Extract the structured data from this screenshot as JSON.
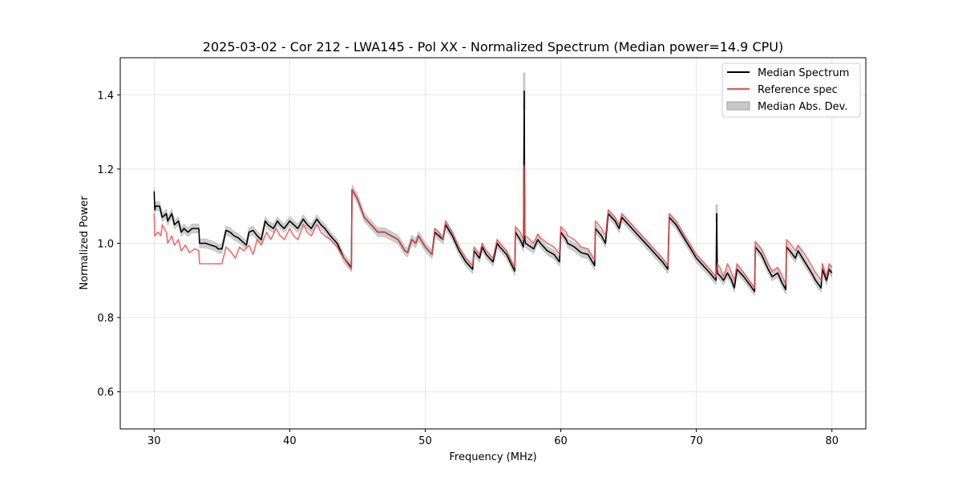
{
  "chart_data": {
    "type": "line",
    "title": "2025-03-02 - Cor 212 - LWA145 - Pol XX - Normalized Spectrum (Median power=14.9 CPU)",
    "xlabel": "Frequency (MHz)",
    "ylabel": "Normalized Power",
    "xlim": [
      27.5,
      82.5
    ],
    "ylim": [
      0.5,
      1.5
    ],
    "xticks": [
      30,
      40,
      50,
      60,
      70,
      80
    ],
    "yticks": [
      0.6,
      0.8,
      1.0,
      1.2,
      1.4
    ],
    "grid": true,
    "legend_position": "upper-right",
    "legend": [
      "Median Spectrum",
      "Reference spec",
      "Median Abs. Dev."
    ],
    "colors": {
      "median": "#000000",
      "reference": "#f05050",
      "overlap": "#8b0000",
      "mad_fill": "#c8c8c8",
      "mad_edge": "#a0a0a0",
      "grid": "#e6e6e6"
    },
    "series": [
      {
        "name": "Median Spectrum",
        "x": [
          30.0,
          30.05,
          30.1,
          30.4,
          30.6,
          30.9,
          31.0,
          31.3,
          31.5,
          31.8,
          32.0,
          32.2,
          32.5,
          32.8,
          33.0,
          33.3,
          33.35,
          33.8,
          34.2,
          34.6,
          34.7,
          35.0,
          35.3,
          35.6,
          35.9,
          36.2,
          36.5,
          36.8,
          37.0,
          37.3,
          37.6,
          37.9,
          38.2,
          38.4,
          38.8,
          39.1,
          39.3,
          39.6,
          40.0,
          40.3,
          40.6,
          41.0,
          41.3,
          41.6,
          42.0,
          42.3,
          42.6,
          43.0,
          43.5,
          44.0,
          44.55,
          44.6,
          45.0,
          45.5,
          46.0,
          46.5,
          47.0,
          47.5,
          48.0,
          48.5,
          48.7,
          49.0,
          49.3,
          49.5,
          50.0,
          50.5,
          50.7,
          51.0,
          51.3,
          51.5,
          52.0,
          52.5,
          53.0,
          53.5,
          53.6,
          54.0,
          54.2,
          54.5,
          55.0,
          55.3,
          55.5,
          56.0,
          56.6,
          56.65,
          57.0,
          57.25,
          57.3,
          57.35,
          57.4,
          58.0,
          58.3,
          58.5,
          59.0,
          59.5,
          59.9,
          60.0,
          60.4,
          60.5,
          61.0,
          61.5,
          62.0,
          62.5,
          62.55,
          63.0,
          63.3,
          63.5,
          64.0,
          64.3,
          64.5,
          65.0,
          65.5,
          66.0,
          66.5,
          67.0,
          67.5,
          67.9,
          68.0,
          68.5,
          69.0,
          69.5,
          70.0,
          70.5,
          71.0,
          71.45,
          71.5,
          71.55,
          71.8,
          72.0,
          72.3,
          72.6,
          72.8,
          73.0,
          73.5,
          74.0,
          74.3,
          74.35,
          74.8,
          75.3,
          75.6,
          76.0,
          76.3,
          76.6,
          76.65,
          77.0,
          77.3,
          77.5,
          78.0,
          78.5,
          78.8,
          79.2,
          79.3,
          79.6,
          79.8,
          80.0
        ],
        "y": [
          1.14,
          1.09,
          1.1,
          1.1,
          1.07,
          1.08,
          1.06,
          1.08,
          1.05,
          1.06,
          1.03,
          1.04,
          1.03,
          1.04,
          1.04,
          1.04,
          1.0,
          1.0,
          0.995,
          0.99,
          0.985,
          0.985,
          1.035,
          1.03,
          1.02,
          1.015,
          1.005,
          0.995,
          1.03,
          1.035,
          1.02,
          1.01,
          1.06,
          1.05,
          1.04,
          1.06,
          1.05,
          1.04,
          1.06,
          1.05,
          1.04,
          1.065,
          1.05,
          1.04,
          1.065,
          1.05,
          1.04,
          1.02,
          1.0,
          0.96,
          0.935,
          1.145,
          1.12,
          1.07,
          1.05,
          1.03,
          1.03,
          1.02,
          1.01,
          0.98,
          0.975,
          1.01,
          1.0,
          1.02,
          0.99,
          0.97,
          1.03,
          1.02,
          1.01,
          1.05,
          1.02,
          0.98,
          0.95,
          0.93,
          0.98,
          0.96,
          0.99,
          0.97,
          0.95,
          1.0,
          0.99,
          0.97,
          0.925,
          1.03,
          1.01,
          0.99,
          1.41,
          1.01,
          1.0,
          0.985,
          1.01,
          1.0,
          0.98,
          0.97,
          0.95,
          1.03,
          1.01,
          1.0,
          0.99,
          0.975,
          0.97,
          0.94,
          1.04,
          1.02,
          1.0,
          1.08,
          1.06,
          1.04,
          1.07,
          1.05,
          1.03,
          1.01,
          0.99,
          0.97,
          0.95,
          0.93,
          1.07,
          1.05,
          1.02,
          0.99,
          0.96,
          0.94,
          0.92,
          0.9,
          1.08,
          0.92,
          0.91,
          0.9,
          0.92,
          0.9,
          0.88,
          0.93,
          0.91,
          0.885,
          0.87,
          0.99,
          0.97,
          0.93,
          0.91,
          0.92,
          0.895,
          0.875,
          0.99,
          0.975,
          0.96,
          0.98,
          0.95,
          0.92,
          0.9,
          0.88,
          0.93,
          0.9,
          0.93,
          0.92
        ]
      },
      {
        "name": "Reference spec",
        "x": [
          30.0,
          30.05,
          30.3,
          30.5,
          30.6,
          30.9,
          31.0,
          31.3,
          31.5,
          31.8,
          32.0,
          32.3,
          32.6,
          33.0,
          33.3,
          33.35,
          35.0,
          35.3,
          35.6,
          36.0,
          36.3,
          36.6,
          37.0,
          37.3,
          37.6,
          37.9,
          38.3,
          38.6,
          39.0,
          39.3,
          39.6,
          40.0,
          40.3,
          40.6,
          41.0,
          41.3,
          41.6,
          42.0,
          42.3,
          42.6,
          43.0,
          43.5,
          44.0,
          44.55,
          44.6,
          45.0,
          45.5,
          46.0,
          46.5,
          47.0,
          47.5,
          48.0,
          48.5,
          48.7,
          49.0,
          49.3,
          49.5,
          50.0,
          50.5,
          50.7,
          51.0,
          51.3,
          51.5,
          52.0,
          52.5,
          53.0,
          53.5,
          53.6,
          54.0,
          54.2,
          54.5,
          55.0,
          55.3,
          55.5,
          56.0,
          56.6,
          56.65,
          57.0,
          57.25,
          57.3,
          57.35,
          57.4,
          58.0,
          58.3,
          58.5,
          59.0,
          59.5,
          59.9,
          60.0,
          60.4,
          60.5,
          61.0,
          61.5,
          62.0,
          62.5,
          62.55,
          63.0,
          63.3,
          63.5,
          64.0,
          64.3,
          64.5,
          65.0,
          65.5,
          66.0,
          66.5,
          67.0,
          67.5,
          67.9,
          68.0,
          68.5,
          69.0,
          69.5,
          70.0,
          70.5,
          71.0,
          71.45,
          71.55,
          71.8,
          72.0,
          72.3,
          72.6,
          72.8,
          73.0,
          73.5,
          74.0,
          74.3,
          74.35,
          74.8,
          75.3,
          75.6,
          76.0,
          76.3,
          76.6,
          76.65,
          77.0,
          77.3,
          77.5,
          78.0,
          78.5,
          78.8,
          79.2,
          79.3,
          79.6,
          79.8,
          80.0
        ],
        "y": [
          1.08,
          1.02,
          1.03,
          1.02,
          1.05,
          1.03,
          1.0,
          1.02,
          0.995,
          1.01,
          0.98,
          0.995,
          0.975,
          0.985,
          0.98,
          0.945,
          0.945,
          0.99,
          0.98,
          0.96,
          0.99,
          0.98,
          0.995,
          0.97,
          1.01,
          0.995,
          1.03,
          1.01,
          1.04,
          1.02,
          1.01,
          1.04,
          1.02,
          1.01,
          1.05,
          1.03,
          1.02,
          1.05,
          1.03,
          1.02,
          1.01,
          0.99,
          0.96,
          0.93,
          1.145,
          1.12,
          1.07,
          1.05,
          1.03,
          1.03,
          1.02,
          1.01,
          0.98,
          0.975,
          1.01,
          1.0,
          1.02,
          0.99,
          0.97,
          1.04,
          1.03,
          1.01,
          1.06,
          1.03,
          0.99,
          0.96,
          0.94,
          0.99,
          0.97,
          1.0,
          0.98,
          0.96,
          1.01,
          1.0,
          0.98,
          0.935,
          1.045,
          1.03,
          1.01,
          1.21,
          1.02,
          1.02,
          1.0,
          1.025,
          1.015,
          1.0,
          0.99,
          0.97,
          1.045,
          1.03,
          1.02,
          1.01,
          0.99,
          0.985,
          0.955,
          1.06,
          1.04,
          1.02,
          1.09,
          1.07,
          1.05,
          1.08,
          1.06,
          1.04,
          1.02,
          1.0,
          0.98,
          0.96,
          0.94,
          1.08,
          1.06,
          1.03,
          1.0,
          0.97,
          0.95,
          0.93,
          0.91,
          0.945,
          0.93,
          0.91,
          0.945,
          0.92,
          0.9,
          0.945,
          0.92,
          0.895,
          0.88,
          1.005,
          0.985,
          0.945,
          0.925,
          0.935,
          0.915,
          0.89,
          1.01,
          0.995,
          0.98,
          0.995,
          0.97,
          0.94,
          0.92,
          0.9,
          0.945,
          0.91,
          0.945,
          0.935
        ]
      }
    ],
    "mad_band_halfwidth": 0.012,
    "mad_spikes": [
      {
        "x": 57.3,
        "low": 1.36,
        "high": 1.46
      },
      {
        "x": 71.5,
        "low": 1.06,
        "high": 1.105
      }
    ]
  }
}
